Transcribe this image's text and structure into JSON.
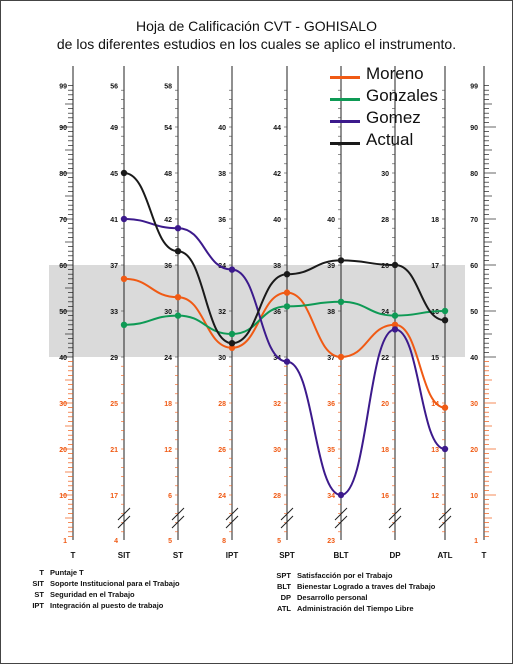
{
  "title_line1": "Hoja de Calificación CVT - GOHISALO",
  "title_line2": "de los diferentes estudios en los cuales se aplico el instrumento.",
  "legend": [
    {
      "label": "Moreno",
      "color": "#f05a14"
    },
    {
      "label": "Gonzales",
      "color": "#0e9a55"
    },
    {
      "label": "Gomez",
      "color": "#3c1a8c"
    },
    {
      "label": "Actual",
      "color": "#1a1a1a"
    }
  ],
  "colors": {
    "band": "#dadada",
    "orange_ticks": "#f05a14",
    "black_ticks": "#222222"
  },
  "chart_data": {
    "type": "line",
    "title": "Hoja de Calificación CVT - GOHISALO",
    "subtitle": "de los diferentes estudios en los cuales se aplico el instrumento.",
    "categories": [
      "SIT",
      "ST",
      "IPT",
      "SPT",
      "BLT",
      "DP",
      "ATL"
    ],
    "ylim": [
      0,
      100
    ],
    "band": [
      40,
      60
    ],
    "grid": false,
    "legend_position": "top-right",
    "series": [
      {
        "name": "Moreno",
        "values": [
          57,
          53,
          42,
          54,
          40,
          47,
          29
        ]
      },
      {
        "name": "Gonzales",
        "values": [
          47,
          49,
          45,
          51,
          52,
          49,
          50
        ]
      },
      {
        "name": "Gomez",
        "values": [
          70,
          68,
          59,
          39,
          10,
          46,
          20
        ]
      },
      {
        "name": "Actual",
        "values": [
          80,
          63,
          43,
          58,
          61,
          60,
          48
        ]
      }
    ],
    "scales": [
      {
        "name": "T",
        "labels": [
          {
            "v": 99,
            "t": "99"
          },
          {
            "v": 90,
            "t": "90"
          },
          {
            "v": 80,
            "t": "80"
          },
          {
            "v": 70,
            "t": "70"
          },
          {
            "v": 60,
            "t": "60"
          },
          {
            "v": 50,
            "t": "50"
          },
          {
            "v": 40,
            "t": "40"
          },
          {
            "v": 30,
            "t": "30"
          },
          {
            "v": 20,
            "t": "20"
          },
          {
            "v": 10,
            "t": "10"
          },
          {
            "v": 1,
            "t": "1"
          }
        ]
      },
      {
        "name": "SIT",
        "labels": [
          {
            "v": 99,
            "t": "56"
          },
          {
            "v": 90,
            "t": "49"
          },
          {
            "v": 80,
            "t": "45"
          },
          {
            "v": 70,
            "t": "41"
          },
          {
            "v": 60,
            "t": "37"
          },
          {
            "v": 50,
            "t": "33"
          },
          {
            "v": 40,
            "t": "29"
          },
          {
            "v": 30,
            "t": "25"
          },
          {
            "v": 20,
            "t": "21"
          },
          {
            "v": 10,
            "t": "17"
          },
          {
            "v": 1,
            "t": "4"
          }
        ]
      },
      {
        "name": "ST",
        "labels": [
          {
            "v": 99,
            "t": "58"
          },
          {
            "v": 90,
            "t": "54"
          },
          {
            "v": 80,
            "t": "48"
          },
          {
            "v": 70,
            "t": "42"
          },
          {
            "v": 60,
            "t": "36"
          },
          {
            "v": 50,
            "t": "30"
          },
          {
            "v": 40,
            "t": "24"
          },
          {
            "v": 30,
            "t": "18"
          },
          {
            "v": 20,
            "t": "12"
          },
          {
            "v": 10,
            "t": "6"
          },
          {
            "v": 1,
            "t": "5"
          }
        ]
      },
      {
        "name": "IPT",
        "labels": [
          {
            "v": 90,
            "t": "40"
          },
          {
            "v": 80,
            "t": "38"
          },
          {
            "v": 70,
            "t": "36"
          },
          {
            "v": 60,
            "t": "34"
          },
          {
            "v": 50,
            "t": "32"
          },
          {
            "v": 40,
            "t": "30"
          },
          {
            "v": 30,
            "t": "28"
          },
          {
            "v": 20,
            "t": "26"
          },
          {
            "v": 10,
            "t": "24"
          },
          {
            "v": 1,
            "t": "8"
          }
        ]
      },
      {
        "name": "SPT",
        "labels": [
          {
            "v": 90,
            "t": "44"
          },
          {
            "v": 80,
            "t": "42"
          },
          {
            "v": 70,
            "t": "40"
          },
          {
            "v": 60,
            "t": "38"
          },
          {
            "v": 50,
            "t": "36"
          },
          {
            "v": 40,
            "t": "34"
          },
          {
            "v": 30,
            "t": "32"
          },
          {
            "v": 20,
            "t": "30"
          },
          {
            "v": 10,
            "t": "28"
          },
          {
            "v": 1,
            "t": "5"
          }
        ]
      },
      {
        "name": "BLT",
        "labels": [
          {
            "v": 70,
            "t": "40"
          },
          {
            "v": 60,
            "t": "39"
          },
          {
            "v": 50,
            "t": "38"
          },
          {
            "v": 40,
            "t": "37"
          },
          {
            "v": 30,
            "t": "36"
          },
          {
            "v": 20,
            "t": "35"
          },
          {
            "v": 10,
            "t": "34"
          },
          {
            "v": 1,
            "t": "23"
          }
        ]
      },
      {
        "name": "DP",
        "labels": [
          {
            "v": 80,
            "t": "30"
          },
          {
            "v": 70,
            "t": "28"
          },
          {
            "v": 60,
            "t": "26"
          },
          {
            "v": 50,
            "t": "24"
          },
          {
            "v": 40,
            "t": "22"
          },
          {
            "v": 30,
            "t": "20"
          },
          {
            "v": 20,
            "t": "18"
          },
          {
            "v": 10,
            "t": "16"
          }
        ]
      },
      {
        "name": "ATL",
        "labels": [
          {
            "v": 70,
            "t": "18"
          },
          {
            "v": 60,
            "t": "17"
          },
          {
            "v": 50,
            "t": "16"
          },
          {
            "v": 40,
            "t": "15"
          },
          {
            "v": 30,
            "t": "14"
          },
          {
            "v": 20,
            "t": "13"
          },
          {
            "v": 10,
            "t": "12"
          }
        ]
      },
      {
        "name": "T",
        "labels": [
          {
            "v": 99,
            "t": "99"
          },
          {
            "v": 90,
            "t": "90"
          },
          {
            "v": 80,
            "t": "80"
          },
          {
            "v": 70,
            "t": "70"
          },
          {
            "v": 60,
            "t": "60"
          },
          {
            "v": 50,
            "t": "50"
          },
          {
            "v": 40,
            "t": "40"
          },
          {
            "v": 30,
            "t": "30"
          },
          {
            "v": 20,
            "t": "20"
          },
          {
            "v": 10,
            "t": "10"
          },
          {
            "v": 1,
            "t": "1"
          }
        ]
      }
    ]
  },
  "definitions_left": [
    {
      "abbr": "T",
      "text": "Puntaje T"
    },
    {
      "abbr": "SIT",
      "text": "Soporte Institucional para el Trabajo"
    },
    {
      "abbr": "ST",
      "text": "Seguridad en el Trabajo"
    },
    {
      "abbr": "IPT",
      "text": "Integración al puesto de trabajo"
    }
  ],
  "definitions_right": [
    {
      "abbr": "SPT",
      "text": "Satisfacción por el Trabajo"
    },
    {
      "abbr": "BLT",
      "text": "Bienestar Logrado a traves del Trabajo"
    },
    {
      "abbr": "DP",
      "text": "Desarrollo personal"
    },
    {
      "abbr": "ATL",
      "text": "Administración del Tiempo Libre"
    }
  ]
}
